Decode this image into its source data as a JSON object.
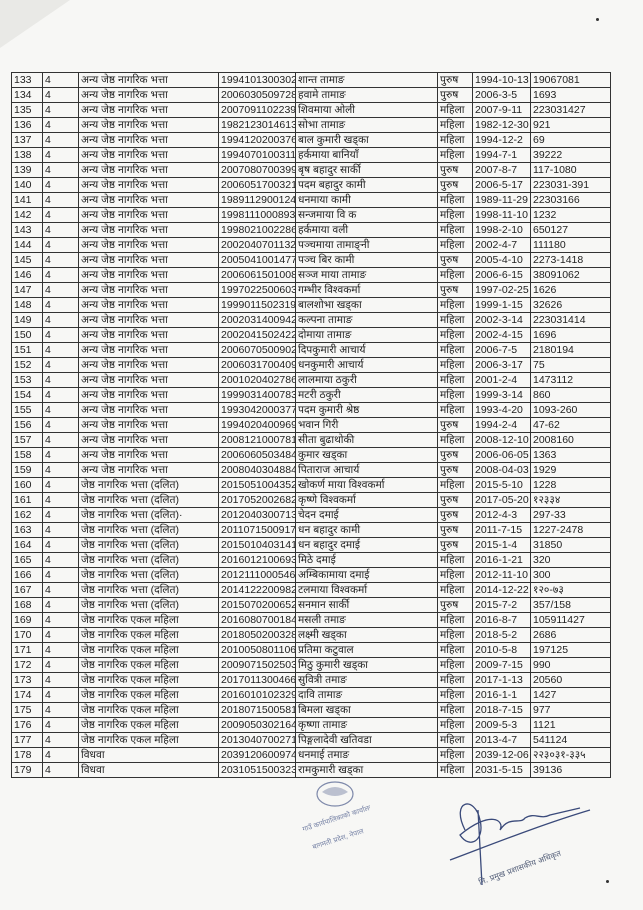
{
  "table": {
    "rows": [
      [
        "133",
        "4",
        "अन्य जेष्ठ नागरिक भत्ता",
        "1994101300302",
        "शान्त तामाङ",
        "पुरुष",
        "1994-10-13",
        "19067081"
      ],
      [
        "134",
        "4",
        "अन्य जेष्ठ नागरिक भत्ता",
        "2006030509728",
        "हवामे तामाङ",
        "पुरुष",
        "2006-3-5",
        "1693"
      ],
      [
        "135",
        "4",
        "अन्य जेष्ठ नागरिक भत्ता",
        "2007091102239",
        "शिवमाया ओली",
        "महिला",
        "2007-9-11",
        "223031427"
      ],
      [
        "136",
        "4",
        "अन्य जेष्ठ नागरिक भत्ता",
        "1982123014613",
        "सोभा तामाङ",
        "महिला",
        "1982-12-30",
        "921"
      ],
      [
        "137",
        "4",
        "अन्य जेष्ठ नागरिक भत्ता",
        "1994120200376",
        "बाल कुमारी खड्का",
        "महिला",
        "1994-12-2",
        "69"
      ],
      [
        "138",
        "4",
        "अन्य जेष्ठ नागरिक भत्ता",
        "1994070100311",
        "हर्कमाया बानियाँ",
        "महिला",
        "1994-7-1",
        "39222"
      ],
      [
        "139",
        "4",
        "अन्य जेष्ठ नागरिक भत्ता",
        "2007080700399",
        "बृष बहादुर सार्की",
        "पुरुष",
        "2007-8-7",
        "117-1080"
      ],
      [
        "140",
        "4",
        "अन्य जेष्ठ नागरिक भत्ता",
        "2006051700321",
        "पदम बहादुर कामी",
        "पुरुष",
        "2006-5-17",
        "223031-391"
      ],
      [
        "141",
        "4",
        "अन्य जेष्ठ नागरिक भत्ता",
        "1989112900124",
        "धनमाया कामी",
        "महिला",
        "1989-11-29",
        "22303166"
      ],
      [
        "142",
        "4",
        "अन्य जेष्ठ नागरिक भत्ता",
        "1998111000893",
        "सन्जमाया वि क",
        "महिला",
        "1998-11-10",
        "1232"
      ],
      [
        "143",
        "4",
        "अन्य जेष्ठ नागरिक भत्ता",
        "1998021002286",
        "हर्कमाया वली",
        "महिला",
        "1998-2-10",
        "650127"
      ],
      [
        "144",
        "4",
        "अन्य जेष्ठ नागरिक भत्ता",
        "2002040701132",
        "पञ्चमाया तामाङ्नी",
        "महिला",
        "2002-4-7",
        "111180"
      ],
      [
        "145",
        "4",
        "अन्य जेष्ठ नागरिक भत्ता",
        "2005041001477",
        "पञ्च बिर कामी",
        "पुरुष",
        "2005-4-10",
        "2273-1418"
      ],
      [
        "146",
        "4",
        "अन्य जेष्ठ नागरिक भत्ता",
        "2006061501008",
        "सञ्ज माया तामाङ",
        "महिला",
        "2006-6-15",
        "38091062"
      ],
      [
        "147",
        "4",
        "अन्य जेष्ठ नागरिक भत्ता",
        "1997022500603",
        "गम्भीर विश्वकर्मा",
        "पुरुष",
        "1997-02-25",
        "1626"
      ],
      [
        "148",
        "4",
        "अन्य जेष्ठ नागरिक भत्ता",
        "1999011502319",
        "बालशोभा खड्का",
        "महिला",
        "1999-1-15",
        "32626"
      ],
      [
        "149",
        "4",
        "अन्य जेष्ठ नागरिक भत्ता",
        "2002031400942",
        "कल्पना तामाङ",
        "महिला",
        "2002-3-14",
        "223031414"
      ],
      [
        "150",
        "4",
        "अन्य जेष्ठ नागरिक भत्ता",
        "2002041502422",
        "दोमाया तामाङ",
        "महिला",
        "2002-4-15",
        "1696"
      ],
      [
        "151",
        "4",
        "अन्य जेष्ठ नागरिक भत्ता",
        "2006070500902",
        "दिपकुमारी आचार्य",
        "महिला",
        "2006-7-5",
        "2180194"
      ],
      [
        "152",
        "4",
        "अन्य जेष्ठ नागरिक भत्ता",
        "2006031700409",
        "धनकुमारी आचार्य",
        "महिला",
        "2006-3-17",
        "75"
      ],
      [
        "153",
        "4",
        "अन्य जेष्ठ नागरिक भत्ता",
        "2001020402786",
        "लालमाया ठकुरी",
        "महिला",
        "2001-2-4",
        "1473112"
      ],
      [
        "154",
        "4",
        "अन्य जेष्ठ नागरिक भत्ता",
        "1999031400783",
        "मटरी ठकुरी",
        "महिला",
        "1999-3-14",
        "860"
      ],
      [
        "155",
        "4",
        "अन्य जेष्ठ नागरिक भत्ता",
        "1993042000377",
        "पदम कुमारी श्रेष्ठ",
        "महिला",
        "1993-4-20",
        "1093-260"
      ],
      [
        "156",
        "4",
        "अन्य जेष्ठ नागरिक भत्ता",
        "1994020400969",
        "भवान गिरी",
        "पुरुष",
        "1994-2-4",
        "47-62"
      ],
      [
        "157",
        "4",
        "अन्य जेष्ठ नागरिक भत्ता",
        "2008121000781",
        "सीता बुढाथोकी",
        "महिला",
        "2008-12-10",
        "2008160"
      ],
      [
        "158",
        "4",
        "अन्य जेष्ठ नागरिक भत्ता",
        "2006060503484",
        "कुमार खड्का",
        "पुरुष",
        "2006-06-05",
        "1363"
      ],
      [
        "159",
        "4",
        "अन्य जेष्ठ नागरिक भत्ता",
        "2008040304884",
        "पिताराज आचार्य",
        "पुरुष",
        "2008-04-03",
        "1929"
      ],
      [
        "160",
        "4",
        "जेष्ठ नागरिक भत्ता (दलित)",
        "2015051004352",
        "खोकर्ण माया विश्वकर्मा",
        "महिला",
        "2015-5-10",
        "1228"
      ],
      [
        "161",
        "4",
        "जेष्ठ नागरिक भत्ता (दलित)",
        "2017052002682",
        "कृष्णे विश्वकर्मा",
        "पुरुष",
        "2017-05-20",
        "१२३३४"
      ],
      [
        "162",
        "4",
        "जेष्ठ नागरिक भत्ता (दलित)·",
        "2012040300713",
        "चेदन दमाई",
        "पुरुष",
        "2012-4-3",
        "297-33"
      ],
      [
        "163",
        "4",
        "जेष्ठ नागरिक भत्ता (दलित)",
        "2011071500917",
        "धन बहादुर कामी",
        "पुरुष",
        "2011-7-15",
        "1227-2478"
      ],
      [
        "164",
        "4",
        "जेष्ठ नागरिक भत्ता (दलित)",
        "2015010403141",
        "धन बहादुर दमाई",
        "पुरुष",
        "2015-1-4",
        "31850"
      ],
      [
        "165",
        "4",
        "जेष्ठ नागरिक भत्ता (दलित)",
        "2016012100693",
        "मिठे दमाई",
        "महिला",
        "2016-1-21",
        "320"
      ],
      [
        "166",
        "4",
        "जेष्ठ नागरिक भत्ता (दलित)",
        "2012111000546",
        "अम्बिकामाया दमाई",
        "महिला",
        "2012-11-10",
        "300"
      ],
      [
        "167",
        "4",
        "जेष्ठ नागरिक भत्ता (दलित)",
        "2014122200982",
        "टलमाया विश्वकर्मा",
        "महिला",
        "2014-12-22",
        "१२०-७३"
      ],
      [
        "168",
        "4",
        "जेष्ठ नागरिक भत्ता (दलित)",
        "2015070200652",
        "सनमान सार्की",
        "पुरुष",
        "2015-7-2",
        "357/158"
      ],
      [
        "169",
        "4",
        "जेष्ठ नागरिक एकल महिला",
        "2016080700184",
        "मसली तमाङ",
        "महिला",
        "2016-8-7",
        "105911427"
      ],
      [
        "170",
        "4",
        "जेष्ठ नागरिक एकल महिला",
        "2018050200328",
        "लक्ष्मी खड्का",
        "महिला",
        "2018-5-2",
        "2686"
      ],
      [
        "171",
        "4",
        "जेष्ठ नागरिक एकल महिला",
        "2010050801106",
        "प्रतिमा कटुवाल",
        "महिला",
        "2010-5-8",
        "197125"
      ],
      [
        "172",
        "4",
        "जेष्ठ नागरिक एकल महिला",
        "2009071502503",
        "मिठु कुमारी खड्का",
        "महिला",
        "2009-7-15",
        "990"
      ],
      [
        "173",
        "4",
        "जेष्ठ नागरिक एकल महिला",
        "2017011300466",
        "सुवित्री तमाङ",
        "महिला",
        "2017-1-13",
        "20560"
      ],
      [
        "174",
        "4",
        "जेष्ठ नागरिक एकल महिला",
        "2016010102329",
        "दावि तामाङ",
        "महिला",
        "2016-1-1",
        "1427"
      ],
      [
        "175",
        "4",
        "जेष्ठ नागरिक एकल महिला",
        "2018071500581",
        "बिमला खड्का",
        "महिला",
        "2018-7-15",
        "977"
      ],
      [
        "176",
        "4",
        "जेष्ठ नागरिक एकल महिला",
        "2009050302164",
        "कृष्णा तामाङ",
        "महिला",
        "2009-5-3",
        "1121"
      ],
      [
        "177",
        "4",
        "जेष्ठ नागरिक एकल महिला",
        "2013040700271",
        "पिङ्गलादेवी खतिवडा",
        "महिला",
        "2013-4-7",
        "541124"
      ],
      [
        "178",
        "4",
        "विधवा",
        "2039120600974",
        "धनमाई तमाङ",
        "महिला",
        "2039-12-06",
        "२२३०३१-३३५"
      ],
      [
        "179",
        "4",
        "विधवा",
        "2031051500323",
        "रामकुमारी खड्का",
        "महिला",
        "2031-5-15",
        "39136"
      ]
    ]
  },
  "stamp": {
    "lines": [
      "गाउँ कार्यपालिकाको कार्यालय",
      "बागमती प्रदेश, नेपाल"
    ],
    "color": "#4a5a8a"
  },
  "signature": {
    "title": "नि. प्रमुख प्रशासकीय अधिकृत",
    "ink_color": "#3a4a7a"
  }
}
